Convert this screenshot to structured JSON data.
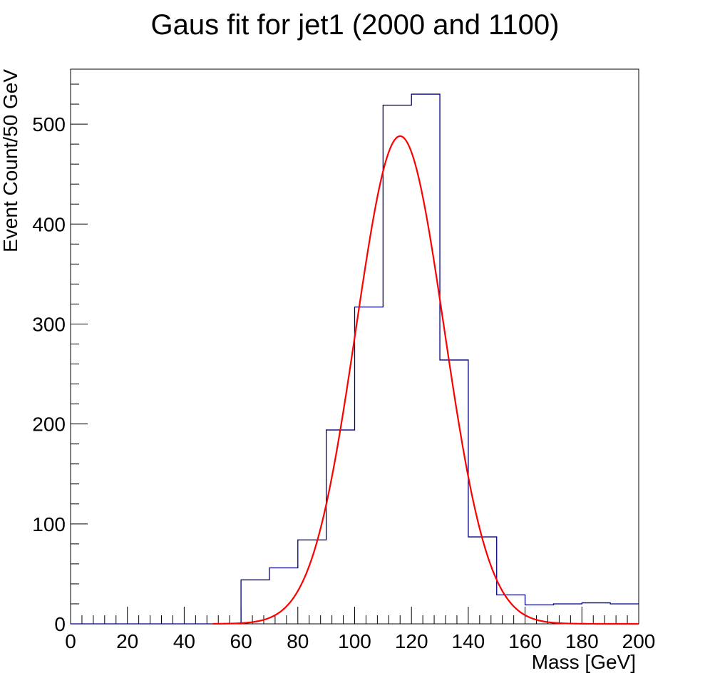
{
  "chart_data": {
    "type": "histogram",
    "title": "Gaus fit for jet1 (2000 and 1100)",
    "xlabel": "Mass [GeV]",
    "ylabel": "Event Count/50 GeV",
    "xlim": [
      0,
      200
    ],
    "ylim": [
      0,
      555
    ],
    "x_ticks": [
      0,
      20,
      40,
      60,
      80,
      100,
      120,
      140,
      160,
      180,
      200
    ],
    "y_ticks": [
      0,
      100,
      200,
      300,
      400,
      500
    ],
    "grid": false,
    "colors": {
      "histogram": "#000080",
      "fit": "#ff0000"
    },
    "histogram": {
      "bin_width": 10,
      "bin_edges": [
        0,
        10,
        20,
        30,
        40,
        50,
        60,
        70,
        80,
        90,
        100,
        110,
        120,
        130,
        140,
        150,
        160,
        170,
        180,
        190,
        200
      ],
      "counts": [
        0,
        0,
        0,
        0,
        0,
        0,
        44,
        56,
        84,
        194,
        317,
        519,
        530,
        264,
        87,
        29,
        19,
        20,
        21,
        20
      ]
    },
    "fit": {
      "function": "gaus",
      "amplitude": 488,
      "mean": 116,
      "sigma": 15.5,
      "range": [
        50,
        200
      ]
    }
  }
}
